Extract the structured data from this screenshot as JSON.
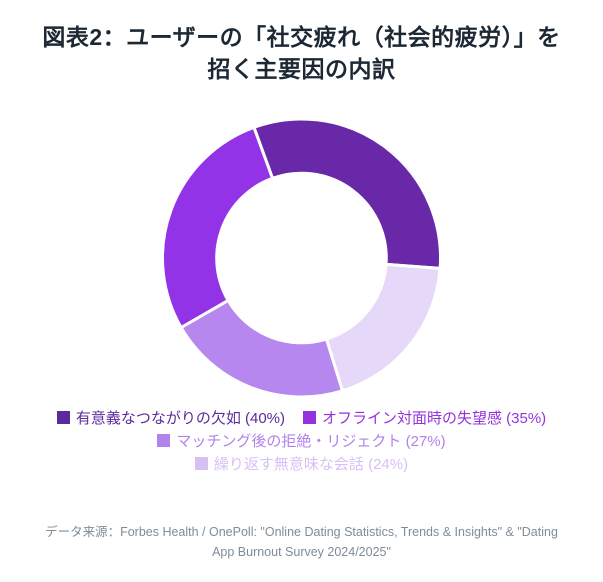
{
  "title": {
    "lines": [
      "図表2：ユーザーの「社交疲れ（社会的疲労）」を",
      "招く主要因の内訳"
    ]
  },
  "source": {
    "lines": [
      "データ来源：Forbes Health / OnePoll: \"Online Dating Statistics, Trends & Insights\" & \"Dating",
      "App Burnout Survey 2024/2025\""
    ]
  },
  "colors": {
    "background": "#FFFFFF",
    "title_text": "#1C2833",
    "source_text": "#7F8C99"
  },
  "chart_data": {
    "type": "pie",
    "subtype": "donut",
    "title": "図表2：ユーザーの「社交疲れ（社会的疲労）」を招く主要因の内訳",
    "categories": [
      "有意義なつながりの欠如",
      "オフライン対面時の失望感",
      "マッチング後の拒絶・リジェクト",
      "繰り返す無意味な会話"
    ],
    "values": [
      40,
      35,
      27,
      24
    ],
    "unit": "%",
    "segment_colors": [
      "#6928A8",
      "#9233E8",
      "#B787F0",
      "#E6D8F8"
    ],
    "legend_text_colors": [
      "#5C2A9C",
      "#9333DD",
      "#B183EC",
      "#D7C1F4"
    ],
    "legend_position": "bottom",
    "legend_rows": [
      [
        0,
        1
      ],
      [
        2
      ],
      [
        3
      ]
    ],
    "start_angle_deg": -20,
    "clockwise_draw_order": [
      0,
      3,
      2,
      1
    ],
    "inner_radius_ratio": 0.61,
    "gap_color": "#FFFFFF"
  }
}
